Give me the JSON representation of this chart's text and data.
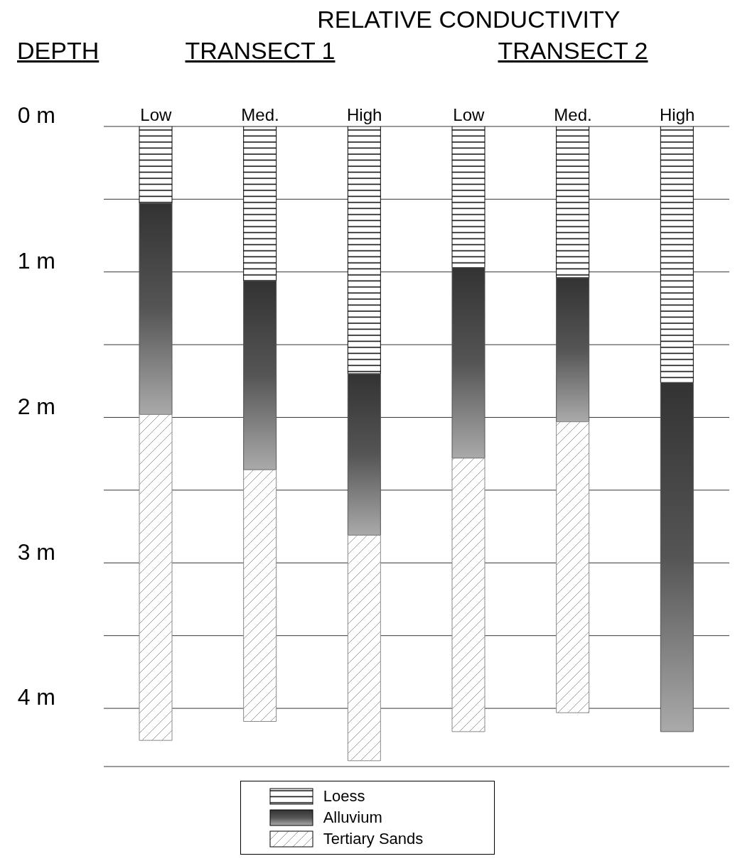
{
  "chart_data": {
    "type": "bar",
    "title": "RELATIVE CONDUCTIVITY",
    "ylabel": "DEPTH",
    "annotations": [
      "TRANSECT 1",
      "TRANSECT 2"
    ],
    "categories": [
      "Low",
      "Med.",
      "High",
      "Low",
      "Med.",
      "High"
    ],
    "stacked": true,
    "series": [
      {
        "name": "Loess",
        "color": "#000000",
        "values": [
          0.53,
          1.06,
          1.7,
          0.97,
          1.04,
          1.76
        ]
      },
      {
        "name": "Alluvium",
        "color": "#555555",
        "values": [
          1.45,
          1.3,
          1.11,
          1.31,
          0.99,
          2.4
        ]
      },
      {
        "name": "Tertiary Sands",
        "color": "#888888",
        "values": [
          2.24,
          1.73,
          1.55,
          1.88,
          2.0,
          0
        ]
      }
    ],
    "ylim": [
      4.4,
      0
    ],
    "yticks": [
      {
        "value": 0,
        "label": "0 m"
      },
      {
        "value": 0.5,
        "label": null
      },
      {
        "value": 1,
        "label": "1 m"
      },
      {
        "value": 1.5,
        "label": null
      },
      {
        "value": 2,
        "label": "2 m"
      },
      {
        "value": 2.5,
        "label": null
      },
      {
        "value": 3,
        "label": "3 m"
      },
      {
        "value": 3.5,
        "label": null
      },
      {
        "value": 4,
        "label": "4 m"
      }
    ],
    "grid": "y",
    "legend": "bottom"
  }
}
